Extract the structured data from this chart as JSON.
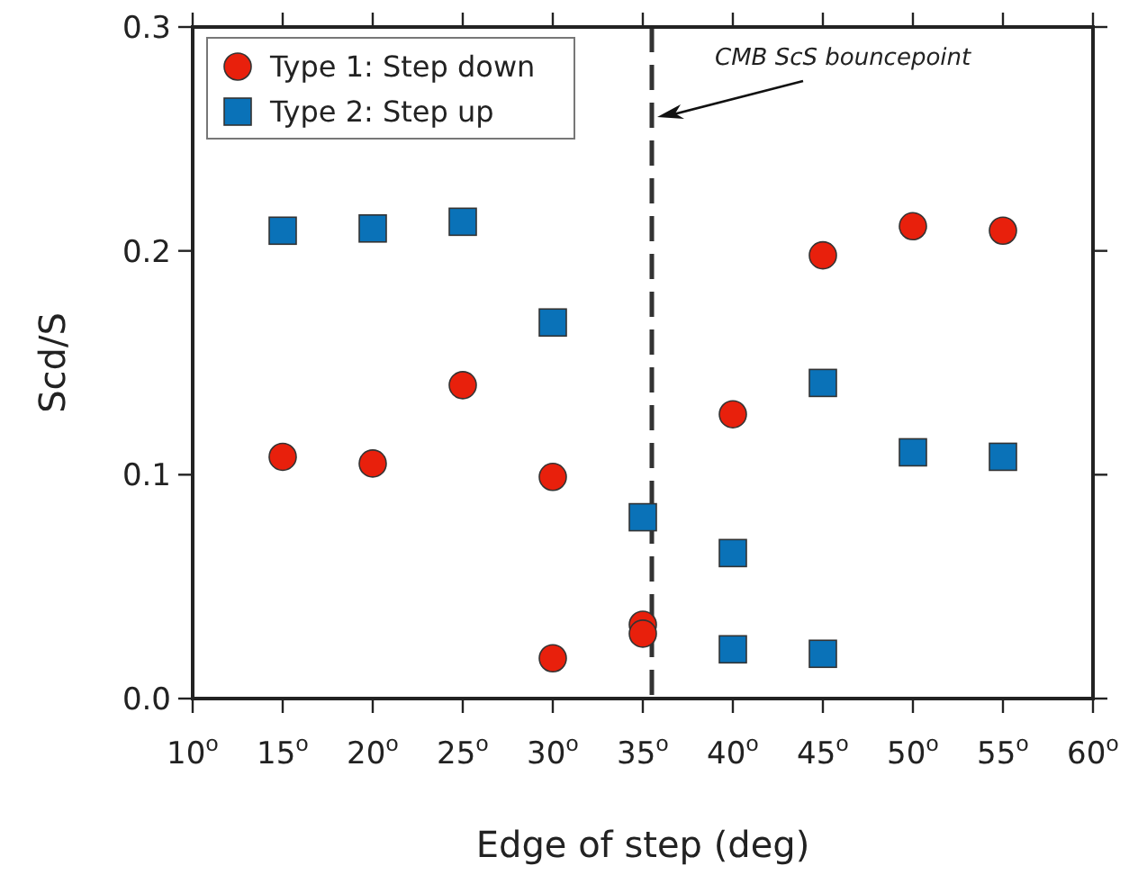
{
  "chart_data": {
    "type": "scatter",
    "xlabel": "Edge of step (deg)",
    "ylabel": "Scd/S",
    "xlim": [
      10,
      60
    ],
    "xticks": [
      {
        "value": 10,
        "label": "10$^{o}$"
      },
      {
        "value": 15,
        "label": "15$^{o}$"
      },
      {
        "value": 20,
        "label": "20$^{o}$"
      },
      {
        "value": 25,
        "label": "25$^{o}$"
      },
      {
        "value": 30,
        "label": "30$^{o}$"
      },
      {
        "value": 35,
        "label": "35$^{o}$"
      },
      {
        "value": 40,
        "label": "40$^{o}$"
      },
      {
        "value": 45,
        "label": "45$^{o}$"
      },
      {
        "value": 50,
        "label": "50$^{o}$"
      },
      {
        "value": 55,
        "label": "55$^{o}$"
      },
      {
        "value": 60,
        "label": "60$^{o}$"
      }
    ],
    "ylim": [
      0,
      0.3
    ],
    "yticks": [
      {
        "value": 0,
        "label": "0.0"
      },
      0.1,
      0.2,
      0.3
    ],
    "grid": false,
    "legend": "top left",
    "ref_lines": [
      {
        "axis": "x",
        "value": 35.5,
        "label": "CMB ScS bouncepoint",
        "color": "#333333",
        "line_style": "dashed"
      }
    ],
    "series": [
      {
        "name": "Type 1: Step down",
        "color": "#e8200c",
        "marker": "circle",
        "x": [
          15,
          20,
          25,
          30,
          30,
          35,
          35,
          40,
          45,
          50,
          55
        ],
        "values": [
          0.108,
          0.105,
          0.14,
          0.099,
          0.018,
          0.033,
          0.029,
          0.127,
          0.198,
          0.211,
          0.209
        ]
      },
      {
        "name": "Type 2: Step up",
        "color": "#0a72b8",
        "marker": "square",
        "x": [
          15,
          20,
          25,
          30,
          35,
          40,
          40,
          45,
          45,
          50,
          55
        ],
        "values": [
          0.209,
          0.21,
          0.213,
          0.168,
          0.081,
          0.065,
          0.022,
          0.141,
          0.02,
          0.11,
          0.108
        ]
      }
    ]
  }
}
